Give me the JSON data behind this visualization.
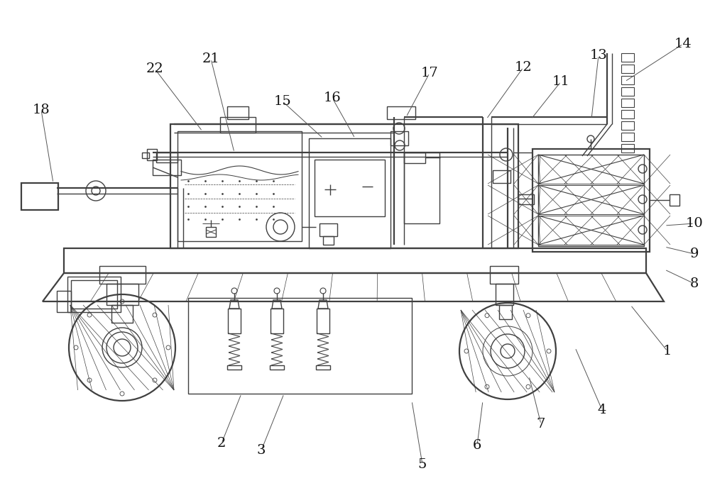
{
  "bg_color": "#ffffff",
  "line_color": "#404040",
  "label_color": "#111111",
  "figsize": [
    10.0,
    6.88
  ],
  "dpi": 100
}
